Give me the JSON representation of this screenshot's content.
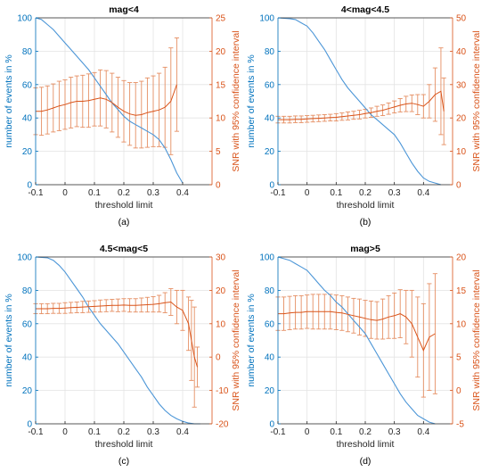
{
  "colors": {
    "left_axis": "#0072BD",
    "right_axis": "#D95319",
    "events_line": "#4C96D7",
    "snr_line": "#D95319",
    "error_bars": "#E58E62"
  },
  "chart_data": [
    {
      "type": "line",
      "title": "mag<4",
      "subfigure_label": "(a)",
      "xlabel": "threshold limit",
      "ylabel_left": "number of events in %",
      "ylabel_right": "SNR with 95% confidence interval",
      "xlim": [
        -0.1,
        0.5
      ],
      "ylim_left": [
        0,
        100
      ],
      "ylim_right": [
        0,
        25
      ],
      "xticks": [
        "-0.1",
        "0",
        "0.1",
        "0.2",
        "0.3",
        "0.4"
      ],
      "yticks_left": [
        "0",
        "20",
        "40",
        "60",
        "80",
        "100"
      ],
      "yticks_right": [
        "0",
        "5",
        "10",
        "15",
        "20",
        "25"
      ],
      "grid": true,
      "series": [
        {
          "axis": "left",
          "x": [
            -0.1,
            -0.08,
            -0.06,
            -0.04,
            -0.02,
            0.0,
            0.02,
            0.04,
            0.06,
            0.08,
            0.1,
            0.12,
            0.14,
            0.16,
            0.18,
            0.2,
            0.22,
            0.24,
            0.26,
            0.28,
            0.3,
            0.32,
            0.34,
            0.36,
            0.38,
            0.4
          ],
          "y": [
            100,
            99,
            96,
            93,
            89,
            85,
            81,
            77,
            73,
            69,
            64,
            59,
            54,
            49,
            45,
            41,
            38,
            36,
            34,
            32,
            30,
            27,
            22,
            15,
            7,
            1
          ]
        },
        {
          "axis": "right",
          "x": [
            -0.1,
            -0.08,
            -0.06,
            -0.04,
            -0.02,
            0.0,
            0.02,
            0.04,
            0.06,
            0.08,
            0.1,
            0.12,
            0.14,
            0.16,
            0.18,
            0.2,
            0.22,
            0.24,
            0.26,
            0.28,
            0.3,
            0.32,
            0.34,
            0.36,
            0.38
          ],
          "y": [
            11,
            11,
            11.2,
            11.5,
            11.8,
            12,
            12.3,
            12.5,
            12.5,
            12.6,
            12.8,
            13,
            12.8,
            12.3,
            11.6,
            11,
            10.6,
            10.4,
            10.5,
            10.8,
            11,
            11.2,
            11.6,
            12.5,
            15
          ],
          "err": [
            3.5,
            3.6,
            3.6,
            3.6,
            3.7,
            3.7,
            3.8,
            3.8,
            3.9,
            4,
            4,
            4.2,
            4.3,
            4.4,
            4.5,
            4.6,
            4.7,
            4.9,
            5,
            5.2,
            5.3,
            5.5,
            6,
            8,
            7
          ]
        }
      ]
    },
    {
      "type": "line",
      "title": "4<mag<4.5",
      "subfigure_label": "(b)",
      "xlabel": "threshold limit",
      "ylabel_left": "number of events in %",
      "ylabel_right": "SNR with 95% confidence interval",
      "xlim": [
        -0.1,
        0.5
      ],
      "ylim_left": [
        0,
        100
      ],
      "ylim_right": [
        0,
        50
      ],
      "xticks": [
        "-0.1",
        "0",
        "0.1",
        "0.2",
        "0.3",
        "0.4"
      ],
      "yticks_left": [
        "0",
        "20",
        "40",
        "60",
        "80",
        "100"
      ],
      "yticks_right": [
        "0",
        "10",
        "20",
        "30",
        "40",
        "50"
      ],
      "grid": true,
      "series": [
        {
          "axis": "left",
          "x": [
            -0.1,
            -0.08,
            -0.06,
            -0.04,
            -0.02,
            0.0,
            0.02,
            0.04,
            0.06,
            0.08,
            0.1,
            0.12,
            0.14,
            0.16,
            0.18,
            0.2,
            0.22,
            0.24,
            0.26,
            0.28,
            0.3,
            0.32,
            0.34,
            0.36,
            0.38,
            0.4,
            0.42,
            0.44,
            0.46
          ],
          "y": [
            100,
            99.8,
            99.5,
            99,
            97,
            95,
            91,
            86,
            81,
            75,
            69,
            63,
            58,
            54,
            50,
            46,
            42,
            39,
            36,
            33,
            30,
            25,
            19,
            13,
            8,
            4,
            2,
            1,
            0
          ]
        },
        {
          "axis": "right",
          "x": [
            -0.1,
            -0.08,
            -0.06,
            -0.04,
            -0.02,
            0.0,
            0.02,
            0.04,
            0.06,
            0.08,
            0.1,
            0.12,
            0.14,
            0.16,
            0.18,
            0.2,
            0.22,
            0.24,
            0.26,
            0.28,
            0.3,
            0.32,
            0.34,
            0.36,
            0.38,
            0.4,
            0.42,
            0.44,
            0.46,
            0.47
          ],
          "y": [
            19.5,
            19.5,
            19.5,
            19.6,
            19.6,
            19.7,
            19.8,
            19.9,
            20,
            20.1,
            20.2,
            20.4,
            20.6,
            20.8,
            21,
            21.3,
            21.6,
            22,
            22.3,
            22.8,
            23.3,
            23.8,
            24.2,
            24.4,
            24,
            23.5,
            25,
            27,
            28,
            22
          ],
          "err": [
            1,
            1,
            1,
            1,
            1,
            1,
            1,
            1,
            1,
            1,
            1.1,
            1.1,
            1.2,
            1.2,
            1.3,
            1.3,
            1.4,
            1.5,
            1.6,
            1.7,
            1.8,
            2,
            2.3,
            2.5,
            3,
            3.5,
            5,
            8,
            13,
            10
          ]
        }
      ]
    },
    {
      "type": "line",
      "title": "4.5<mag<5",
      "subfigure_label": "(c)",
      "xlabel": "threshold limit",
      "ylabel_left": "number of events in %",
      "ylabel_right": "SNR with 95% confidence interval",
      "xlim": [
        -0.1,
        0.5
      ],
      "ylim_left": [
        0,
        100
      ],
      "ylim_right": [
        -20,
        30
      ],
      "xticks": [
        "-0.1",
        "0",
        "0.1",
        "0.2",
        "0.3",
        "0.4"
      ],
      "yticks_left": [
        "0",
        "20",
        "40",
        "60",
        "80",
        "100"
      ],
      "yticks_right": [
        "-20",
        "-10",
        "0",
        "10",
        "20",
        "30"
      ],
      "grid": true,
      "series": [
        {
          "axis": "left",
          "x": [
            -0.1,
            -0.08,
            -0.06,
            -0.04,
            -0.02,
            0.0,
            0.02,
            0.04,
            0.06,
            0.08,
            0.1,
            0.12,
            0.14,
            0.16,
            0.18,
            0.2,
            0.22,
            0.24,
            0.26,
            0.28,
            0.3,
            0.32,
            0.34,
            0.36,
            0.38,
            0.4,
            0.42,
            0.44,
            0.46
          ],
          "y": [
            100,
            99.8,
            99.5,
            98,
            95,
            91,
            86,
            81,
            76,
            70,
            65,
            60,
            56,
            52,
            48,
            43,
            38,
            33,
            28,
            22,
            17,
            12,
            8,
            5,
            3,
            1.5,
            0.5,
            0,
            0
          ]
        },
        {
          "axis": "right",
          "x": [
            -0.1,
            -0.08,
            -0.06,
            -0.04,
            -0.02,
            0.0,
            0.02,
            0.04,
            0.06,
            0.08,
            0.1,
            0.12,
            0.14,
            0.16,
            0.18,
            0.2,
            0.22,
            0.24,
            0.26,
            0.28,
            0.3,
            0.32,
            0.34,
            0.36,
            0.38,
            0.4,
            0.42,
            0.43,
            0.44,
            0.45
          ],
          "y": [
            14.5,
            14.5,
            14.5,
            14.6,
            14.6,
            14.7,
            14.8,
            14.9,
            15,
            15.1,
            15.2,
            15.3,
            15.4,
            15.5,
            15.5,
            15.6,
            15.5,
            15.5,
            15.6,
            15.7,
            15.8,
            16,
            16.3,
            16.5,
            15,
            14,
            10,
            5,
            0,
            -3
          ],
          "err": [
            1.5,
            1.5,
            1.5,
            1.5,
            1.5,
            1.6,
            1.6,
            1.6,
            1.7,
            1.7,
            1.7,
            1.8,
            1.8,
            1.8,
            1.9,
            1.9,
            2,
            2,
            2.1,
            2.2,
            2.3,
            2.5,
            3,
            4,
            5,
            6,
            8,
            12,
            15,
            6
          ]
        }
      ]
    },
    {
      "type": "line",
      "title": "mag>5",
      "subfigure_label": "(d)",
      "xlabel": "threshold limit",
      "ylabel_left": "number of events in %",
      "ylabel_right": "SNR with 95% confidence interval",
      "xlim": [
        -0.1,
        0.5
      ],
      "ylim_left": [
        0,
        100
      ],
      "ylim_right": [
        -5,
        20
      ],
      "xticks": [
        "-0.1",
        "0",
        "0.1",
        "0.2",
        "0.3",
        "0.4"
      ],
      "yticks_left": [
        "0",
        "20",
        "40",
        "60",
        "80",
        "100"
      ],
      "yticks_right": [
        "-5",
        "0",
        "5",
        "10",
        "15",
        "20"
      ],
      "grid": true,
      "series": [
        {
          "axis": "left",
          "x": [
            -0.1,
            -0.08,
            -0.06,
            -0.04,
            -0.02,
            0.0,
            0.02,
            0.04,
            0.06,
            0.08,
            0.1,
            0.12,
            0.14,
            0.16,
            0.18,
            0.2,
            0.22,
            0.24,
            0.26,
            0.28,
            0.3,
            0.32,
            0.34,
            0.36,
            0.38,
            0.4,
            0.42,
            0.44
          ],
          "y": [
            100,
            99,
            98,
            96,
            94,
            92,
            88,
            84,
            80,
            77,
            73,
            70,
            66,
            62,
            58,
            54,
            48,
            42,
            36,
            30,
            24,
            18,
            13,
            9,
            5,
            3,
            1,
            0
          ]
        },
        {
          "axis": "right",
          "x": [
            -0.1,
            -0.08,
            -0.06,
            -0.04,
            -0.02,
            0.0,
            0.02,
            0.04,
            0.06,
            0.08,
            0.1,
            0.12,
            0.14,
            0.16,
            0.18,
            0.2,
            0.22,
            0.24,
            0.26,
            0.28,
            0.3,
            0.32,
            0.34,
            0.36,
            0.38,
            0.4,
            0.42,
            0.44
          ],
          "y": [
            11.5,
            11.5,
            11.6,
            11.7,
            11.7,
            11.8,
            11.8,
            11.8,
            11.8,
            11.8,
            11.7,
            11.6,
            11.4,
            11.2,
            11,
            10.8,
            10.6,
            10.5,
            10.7,
            11,
            11.2,
            11.5,
            11,
            10,
            8,
            6,
            8,
            8.5
          ],
          "err": [
            2.5,
            2.5,
            2.5,
            2.5,
            2.5,
            2.5,
            2.6,
            2.6,
            2.6,
            2.6,
            2.6,
            2.6,
            2.6,
            2.6,
            2.7,
            2.7,
            2.8,
            2.8,
            3,
            3.2,
            3.4,
            3.6,
            4,
            5,
            6,
            7,
            8,
            9
          ]
        }
      ]
    }
  ]
}
